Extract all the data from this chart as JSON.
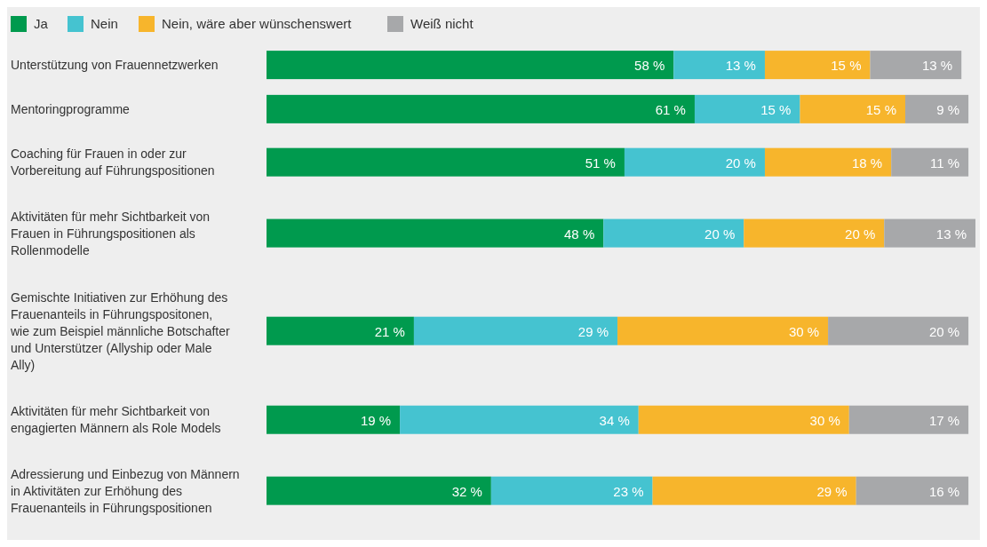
{
  "chart_data": {
    "type": "bar",
    "orientation": "horizontal",
    "stacked": true,
    "legend": "top left",
    "xlim": [
      0,
      101
    ],
    "tick_labels": "y",
    "categories": [
      "Unterstützung von Frauennetzwerken",
      "Mentoringprogramme",
      "Coaching für Frauen in oder zur Vorbereitung auf Führungspositionen",
      "Aktivitäten für mehr Sichtbarkeit von Frauen in Führungspositionen als Rollenmodelle",
      "Gemischte Initiativen zur Erhöhung des Frauenanteils in Führungspositonen, wie zum Beispiel männliche Botschafter und Unterstützer (Allyship oder Male Ally)",
      "Aktivitäten für mehr Sichtbarkeit von engagierten Männern als Role Models",
      "Adressierung und Einbezug von Männern in Aktivitäten zur Erhöhung des Frauenanteils in Führungspositionen"
    ],
    "series": [
      {
        "name": "Ja",
        "color": "#009a4e",
        "values": [
          58,
          61,
          51,
          48,
          21,
          19,
          32
        ],
        "value_labels": [
          "58 %",
          "61 %",
          "51 %",
          "48 %",
          "21 %",
          "19 %",
          "32 %"
        ]
      },
      {
        "name": "Nein",
        "color": "#45c3d0",
        "values": [
          13,
          15,
          20,
          20,
          29,
          34,
          23
        ],
        "value_labels": [
          "13 %",
          "15 %",
          "20 %",
          "20 %",
          "29 %",
          "34 %",
          "23 %"
        ]
      },
      {
        "name": "Nein, wäre aber wünschenswert",
        "color": "#f7b52c",
        "values": [
          15,
          15,
          18,
          20,
          30,
          30,
          29
        ],
        "value_labels": [
          "15 %",
          "15 %",
          "18 %",
          "20 %",
          "30 %",
          "30 %",
          "29 %"
        ]
      },
      {
        "name": "Weiß nicht",
        "color": "#a7a8aa",
        "values": [
          13,
          9,
          11,
          13,
          20,
          17,
          16
        ],
        "value_labels": [
          "13 %",
          "9 %",
          "11 %",
          "13 %",
          "20 %",
          "17 %",
          "16 %"
        ]
      }
    ]
  }
}
